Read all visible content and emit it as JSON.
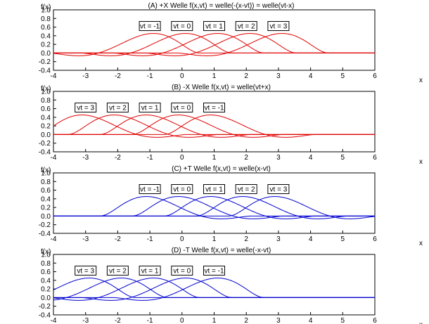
{
  "chart_data": [
    {
      "type": "line",
      "panel": "A",
      "title": "(A) +X Welle f(x,vt) = welle(-(x-vt)) = welle(vt-x)",
      "ylabel": "f(x)",
      "xlabel": "x",
      "xlim": [
        -4,
        6
      ],
      "ylim": [
        -0.4,
        1.0
      ],
      "xticks": [
        "-4",
        "-3",
        "-2",
        "-1",
        "0",
        "1",
        "2",
        "3",
        "4",
        "5",
        "6"
      ],
      "yticks": [
        "1.0",
        "0.8",
        "0.6",
        "0.4",
        "0.2",
        "0.0",
        "-0.2",
        "-0.4"
      ],
      "color": "#e00000",
      "dir": 1,
      "reflect": true,
      "series": [
        {
          "vt": -1,
          "label": "vt = -1"
        },
        {
          "vt": 0,
          "label": "vt = 0"
        },
        {
          "vt": 1,
          "label": "vt = 1"
        },
        {
          "vt": 2,
          "label": "vt = 2"
        },
        {
          "vt": 3,
          "label": "vt = 3"
        }
      ]
    },
    {
      "type": "line",
      "panel": "B",
      "title": "(B) -X Welle f(x,vt) = welle(vt+x)",
      "ylabel": "f(x)",
      "xlabel": "x",
      "xlim": [
        -4,
        6
      ],
      "ylim": [
        -0.4,
        1.0
      ],
      "xticks": [
        "-4",
        "-3",
        "-2",
        "-1",
        "0",
        "1",
        "2",
        "3",
        "4",
        "5",
        "6"
      ],
      "yticks": [
        "1.0",
        "0.8",
        "0.6",
        "0.4",
        "0.2",
        "0.0",
        "-0.2",
        "-0.4"
      ],
      "color": "#e00000",
      "dir": -1,
      "reflect": false,
      "series": [
        {
          "vt": 3,
          "label": "vt = 3"
        },
        {
          "vt": 2,
          "label": "vt = 2"
        },
        {
          "vt": 1,
          "label": "vt = 1"
        },
        {
          "vt": 0,
          "label": "vt = 0"
        },
        {
          "vt": -1,
          "label": "vt = -1"
        }
      ]
    },
    {
      "type": "line",
      "panel": "C",
      "title": "(C) +T Welle f(x,vt) = welle(x-vt)",
      "ylabel": "f(x)",
      "xlabel": "x",
      "xlim": [
        -4,
        6
      ],
      "ylim": [
        -0.4,
        1.0
      ],
      "xticks": [
        "-4",
        "-3",
        "-2",
        "-1",
        "0",
        "1",
        "2",
        "3",
        "4",
        "5",
        "6"
      ],
      "yticks": [
        "1.0",
        "0.8",
        "0.6",
        "0.4",
        "0.2",
        "0.0",
        "-0.2",
        "-0.4"
      ],
      "color": "#0000d0",
      "dir": 1,
      "reflect": false,
      "series": [
        {
          "vt": -1,
          "label": "vt = -1"
        },
        {
          "vt": 0,
          "label": "vt = 0"
        },
        {
          "vt": 1,
          "label": "vt = 1"
        },
        {
          "vt": 2,
          "label": "vt = 2"
        },
        {
          "vt": 3,
          "label": "vt = 3"
        }
      ]
    },
    {
      "type": "line",
      "panel": "D",
      "title": "(D) -T Welle f(x,vt) = welle(-x-vt)",
      "ylabel": "f(x)",
      "xlabel": "x",
      "xlim": [
        -4,
        6
      ],
      "ylim": [
        -0.4,
        1.0
      ],
      "xticks": [
        "-4",
        "-3",
        "-2",
        "-1",
        "0",
        "1",
        "2",
        "3",
        "4",
        "5",
        "6"
      ],
      "yticks": [
        "1.0",
        "0.8",
        "0.6",
        "0.4",
        "0.2",
        "0.0",
        "-0.2",
        "-0.4"
      ],
      "color": "#0000d0",
      "dir": -1,
      "reflect": true,
      "series": [
        {
          "vt": 3,
          "label": "vt = 3"
        },
        {
          "vt": 2,
          "label": "vt = 2"
        },
        {
          "vt": 1,
          "label": "vt = 1"
        },
        {
          "vt": 0,
          "label": "vt = 0"
        },
        {
          "vt": -1,
          "label": "vt = -1"
        }
      ]
    }
  ]
}
